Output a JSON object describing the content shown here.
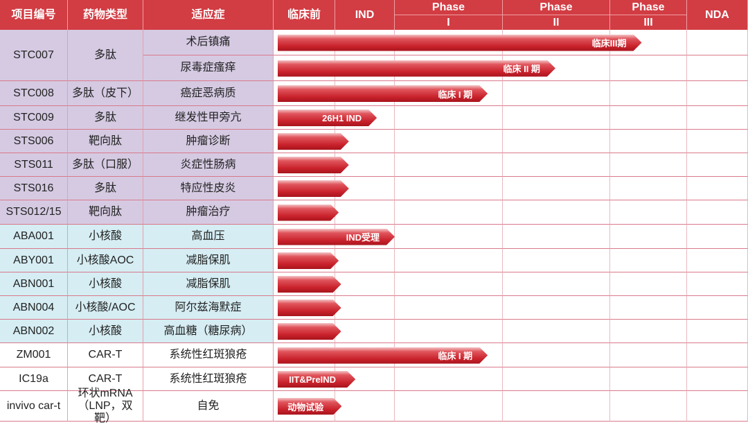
{
  "colors": {
    "header": "#d23c43",
    "peptide_group": "#d5cae2",
    "nucleic_group": "#d5edf3",
    "cart_group": "#ffffff",
    "bar": "#c9222c"
  },
  "headers": {
    "id": "项目编号",
    "type": "药物类型",
    "indication": "适应症",
    "preclinical": "临床前",
    "ind": "IND",
    "phase1": [
      "Phase",
      "I"
    ],
    "phase2": [
      "Phase",
      "II"
    ],
    "phase3": [
      "Phase",
      "III"
    ],
    "nda": "NDA"
  },
  "stages": [
    "临床前",
    "IND",
    "Phase I",
    "Phase II",
    "Phase III",
    "NDA"
  ],
  "programs": [
    {
      "id": "STC007",
      "type": "多肽",
      "group": "peptide",
      "indications": [
        {
          "name": "术后镇痛",
          "progress": 4.41,
          "label": "临床III期"
        },
        {
          "name": "尿毒症瘙痒",
          "progress": 3.49,
          "label": "临床 II 期"
        }
      ]
    },
    {
      "id": "STC008",
      "type": "多肽（皮下）",
      "group": "peptide",
      "indications": [
        {
          "name": "癌症恶病质",
          "progress": 2.86,
          "label": "临床 I 期"
        }
      ]
    },
    {
      "id": "STC009",
      "type": "多肽",
      "group": "peptide",
      "indications": [
        {
          "name": "继发性甲旁亢",
          "progress": 1.7,
          "label": "26H1 IND"
        }
      ]
    },
    {
      "id": "STS006",
      "type": "靶向肽",
      "group": "peptide",
      "indications": [
        {
          "name": "肿瘤诊断",
          "progress": 1.23,
          "label": ""
        }
      ]
    },
    {
      "id": "STS011",
      "type": "多肽（口服）",
      "group": "peptide",
      "indications": [
        {
          "name": "炎症性肠病",
          "progress": 1.23,
          "label": ""
        }
      ]
    },
    {
      "id": "STS016",
      "type": "多肽",
      "group": "peptide",
      "indications": [
        {
          "name": "特应性皮炎",
          "progress": 1.23,
          "label": ""
        }
      ]
    },
    {
      "id": "STS012/15",
      "type": "靶向肽",
      "group": "peptide",
      "indications": [
        {
          "name": "肿瘤治疗",
          "progress": 1.06,
          "label": ""
        }
      ]
    },
    {
      "id": "ABA001",
      "type": "小核酸",
      "group": "nucleic",
      "indications": [
        {
          "name": "高血压",
          "progress": 2.0,
          "label": "IND受理"
        }
      ]
    },
    {
      "id": "ABY001",
      "type": "小核酸AOC",
      "group": "nucleic",
      "indications": [
        {
          "name": "减脂保肌",
          "progress": 1.06,
          "label": ""
        }
      ]
    },
    {
      "id": "ABN001",
      "type": "小核酸",
      "group": "nucleic",
      "indications": [
        {
          "name": "减脂保肌",
          "progress": 1.1,
          "label": ""
        }
      ]
    },
    {
      "id": "ABN004",
      "type": "小核酸/AOC",
      "group": "nucleic",
      "indications": [
        {
          "name": "阿尔兹海默症",
          "progress": 1.1,
          "label": ""
        }
      ]
    },
    {
      "id": "ABN002",
      "type": "小核酸",
      "group": "nucleic",
      "indications": [
        {
          "name": "高血糖（糖尿病）",
          "progress": 1.1,
          "label": ""
        }
      ]
    },
    {
      "id": "ZM001",
      "type": "CAR-T",
      "group": "cart",
      "indications": [
        {
          "name": "系统性红斑狼疮",
          "progress": 2.86,
          "label": "临床 I 期"
        }
      ]
    },
    {
      "id": "IC19a",
      "type": "CAR-T",
      "group": "cart",
      "indications": [
        {
          "name": "系统性红斑狼疮",
          "progress": 1.34,
          "label": "IIT&PreIND"
        }
      ]
    },
    {
      "id": "invivo car-t",
      "type": "环状mRNA（LNP，双靶）",
      "group": "cart",
      "indications": [
        {
          "name": "自免",
          "progress": 1.11,
          "label": "动物试验"
        }
      ]
    }
  ]
}
